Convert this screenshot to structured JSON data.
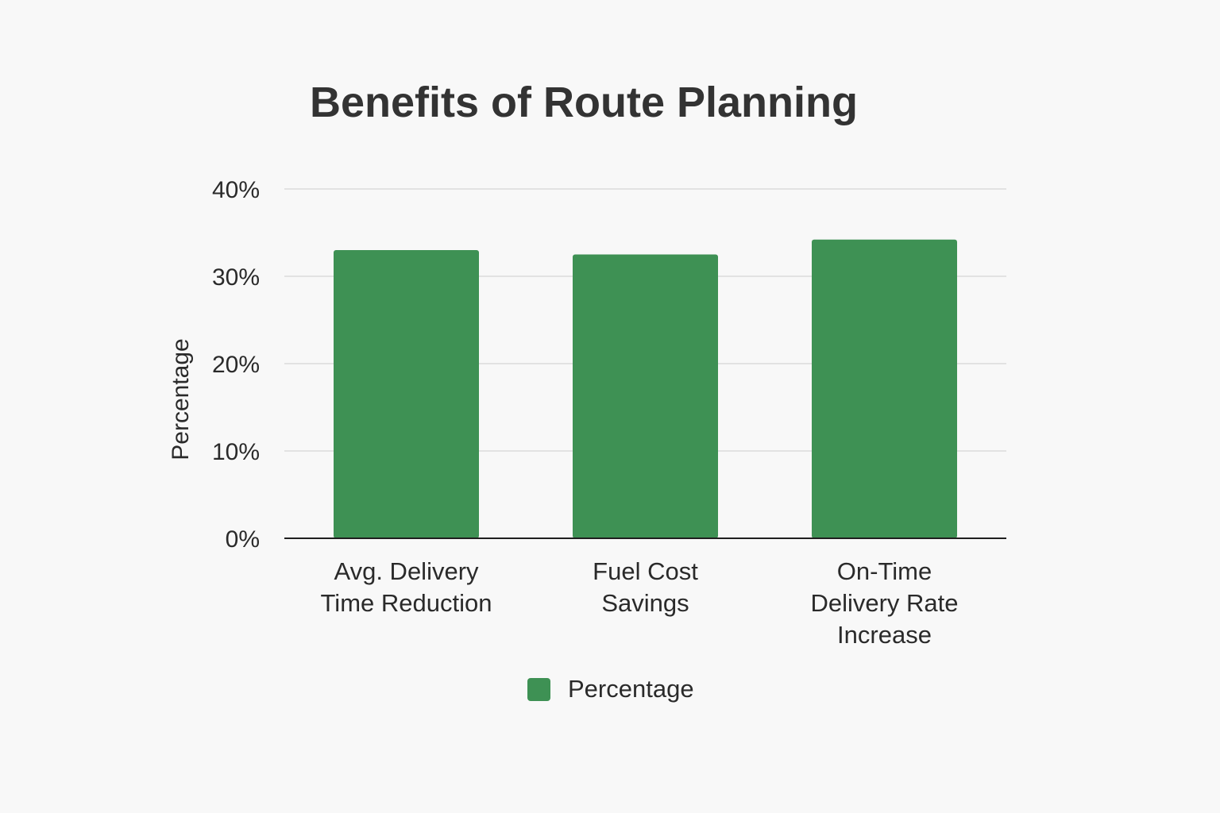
{
  "chart_data": {
    "type": "bar",
    "title": "Benefits of Route Planning",
    "xlabel": "",
    "ylabel": "Percentage",
    "categories": [
      [
        "Avg. Delivery",
        "Time Reduction"
      ],
      [
        "Fuel Cost",
        "Savings"
      ],
      [
        "On-Time",
        "Delivery Rate",
        "Increase"
      ]
    ],
    "series": [
      {
        "name": "Percentage",
        "values": [
          33,
          32.5,
          34.2
        ],
        "color": "#3e9154"
      }
    ],
    "ylim": [
      0,
      40
    ],
    "yticks": [
      0,
      10,
      20,
      30,
      40
    ],
    "ytick_labels": [
      "0%",
      "10%",
      "20%",
      "30%",
      "40%"
    ],
    "grid": true,
    "legend_position": "bottom-center"
  }
}
